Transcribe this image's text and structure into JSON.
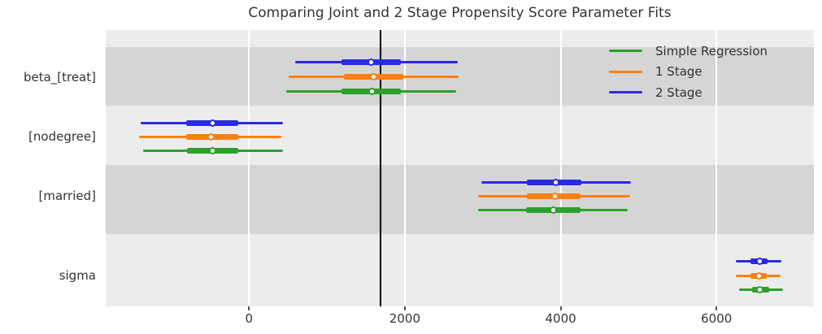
{
  "title": "Comparing Joint and 2 Stage Propensity Score Parameter Fits",
  "legend": {
    "entries": [
      {
        "label": "Simple Regression",
        "color": "#2ca02c"
      },
      {
        "label": "1 Stage",
        "color": "#ff7f0e"
      },
      {
        "label": "2 Stage",
        "color": "#2a2ae0"
      }
    ]
  },
  "colors": {
    "plot_bg": "#ececec",
    "shaded_band": "#d5d5d5",
    "gridline": "#ffffff",
    "reference_line": "#000000",
    "text": "#333333",
    "simple_regression": "#2ca02c",
    "one_stage": "#ff7f0e",
    "two_stage": "#2a2ae0"
  },
  "chart_data": {
    "type": "forest",
    "title": "Comparing Joint and 2 Stage Propensity Score Parameter Fits",
    "xlabel": "",
    "ylabel": "",
    "grid": true,
    "legend_position": "upper right",
    "x_axis": {
      "ticks": [
        0,
        2000,
        4000,
        6000
      ],
      "range": [
        -1840,
        7250
      ]
    },
    "reference_line_x": 1690,
    "row_order_top_to_bottom": [
      "2 Stage",
      "1 Stage",
      "Simple Regression"
    ],
    "groups": [
      {
        "label": "beta_[treat]",
        "shaded": true,
        "rows": [
          {
            "series": "2 Stage",
            "color": "#2a2ae0",
            "ci": [
              590,
              2680
            ],
            "quartile": [
              1190,
              1950
            ],
            "median": 1570
          },
          {
            "series": "1 Stage",
            "color": "#ff7f0e",
            "ci": [
              510,
              2685
            ],
            "quartile": [
              1215,
              1980
            ],
            "median": 1600
          },
          {
            "series": "Simple Regression",
            "color": "#2ca02c",
            "ci": [
              480,
              2660
            ],
            "quartile": [
              1190,
              1950
            ],
            "median": 1580
          }
        ]
      },
      {
        "label": "[nodegree]",
        "shaded": false,
        "rows": [
          {
            "series": "2 Stage",
            "color": "#2a2ae0",
            "ci": [
              -1390,
              435
            ],
            "quartile": [
              -805,
              -135
            ],
            "median": -470
          },
          {
            "series": "1 Stage",
            "color": "#ff7f0e",
            "ci": [
              -1410,
              415
            ],
            "quartile": [
              -810,
              -140
            ],
            "median": -490
          },
          {
            "series": "Simple Regression",
            "color": "#2ca02c",
            "ci": [
              -1365,
              435
            ],
            "quartile": [
              -795,
              -140
            ],
            "median": -470
          }
        ]
      },
      {
        "label": "[married]",
        "shaded": true,
        "rows": [
          {
            "series": "2 Stage",
            "color": "#2a2ae0",
            "ci": [
              2980,
              4905
            ],
            "quartile": [
              3570,
              4265
            ],
            "median": 3935
          },
          {
            "series": "1 Stage",
            "color": "#ff7f0e",
            "ci": [
              2935,
              4895
            ],
            "quartile": [
              3570,
              4255
            ],
            "median": 3930
          },
          {
            "series": "Simple Regression",
            "color": "#2ca02c",
            "ci": [
              2935,
              4860
            ],
            "quartile": [
              3560,
              4255
            ],
            "median": 3910
          }
        ]
      },
      {
        "label": "sigma",
        "shaded": false,
        "rows": [
          {
            "series": "2 Stage",
            "color": "#2a2ae0",
            "ci": [
              6250,
              6835
            ],
            "quartile": [
              6440,
              6660
            ],
            "median": 6555
          },
          {
            "series": "1 Stage",
            "color": "#ff7f0e",
            "ci": [
              6250,
              6825
            ],
            "quartile": [
              6440,
              6650
            ],
            "median": 6545
          },
          {
            "series": "Simple Regression",
            "color": "#2ca02c",
            "ci": [
              6295,
              6850
            ],
            "quartile": [
              6460,
              6675
            ],
            "median": 6560
          }
        ]
      }
    ]
  }
}
